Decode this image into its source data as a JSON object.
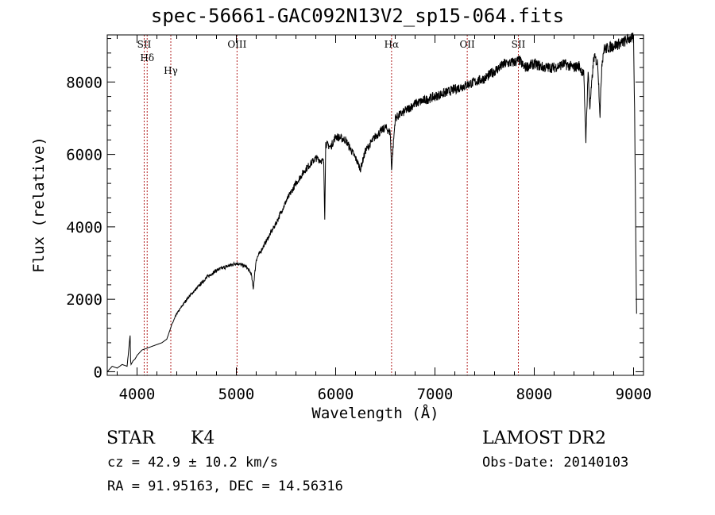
{
  "chart_data": {
    "type": "line",
    "title": "spec-56661-GAC092N13V2_sp15-064.fits",
    "xlabel": "Wavelength (Å)",
    "ylabel": "Flux (relative)",
    "xlim": [
      3700,
      9100
    ],
    "ylim": [
      -100,
      9300
    ],
    "xticks": [
      4000,
      5000,
      6000,
      7000,
      8000,
      9000
    ],
    "yticks": [
      0,
      2000,
      4000,
      6000,
      8000
    ],
    "grid": false,
    "series": [
      {
        "x": [
          3700,
          3750,
          3800,
          3850,
          3900,
          3930,
          3935,
          3940,
          3960,
          3980,
          4000,
          4050,
          4100,
          4150,
          4200,
          4250,
          4300,
          4350,
          4400,
          4500,
          4600,
          4700,
          4800,
          4900,
          5000,
          5050,
          5100,
          5150,
          5170,
          5200,
          5300,
          5400,
          5500,
          5600,
          5700,
          5800,
          5880,
          5890,
          5900,
          5950,
          6000,
          6100,
          6200,
          6250,
          6300,
          6400,
          6500,
          6550,
          6563,
          6600,
          6700,
          6800,
          6900,
          7000,
          7100,
          7200,
          7300,
          7400,
          7500,
          7600,
          7700,
          7800,
          7850,
          7900,
          8000,
          8100,
          8200,
          8300,
          8400,
          8450,
          8498,
          8520,
          8542,
          8560,
          8600,
          8640,
          8662,
          8680,
          8700,
          8800,
          8900,
          8950,
          9000,
          9010,
          9030
        ],
        "values": [
          0,
          150,
          100,
          200,
          150,
          1000,
          300,
          200,
          300,
          350,
          450,
          600,
          650,
          700,
          750,
          800,
          900,
          1300,
          1600,
          2000,
          2300,
          2600,
          2800,
          2900,
          3000,
          2950,
          2900,
          2700,
          2300,
          3100,
          3600,
          4100,
          4700,
          5200,
          5600,
          5900,
          5800,
          4200,
          6300,
          6200,
          6500,
          6400,
          5900,
          5600,
          6100,
          6500,
          6750,
          6600,
          5600,
          7000,
          7200,
          7400,
          7500,
          7600,
          7700,
          7800,
          7900,
          8000,
          8100,
          8300,
          8500,
          8550,
          8600,
          8400,
          8500,
          8400,
          8400,
          8500,
          8400,
          8450,
          8200,
          6400,
          8300,
          7300,
          8700,
          8500,
          7100,
          8500,
          8900,
          9000,
          9100,
          9200,
          9200,
          7200,
          1600
        ]
      }
    ],
    "lines": [
      {
        "name": "Hδ",
        "x": 4102
      },
      {
        "name": "SII",
        "x": 4072
      },
      {
        "name": "Hγ",
        "x": 4340
      },
      {
        "name": "OIII",
        "x": 5007
      },
      {
        "name": "Hα",
        "x": 6563
      },
      {
        "name": "OII",
        "x": 7325
      },
      {
        "name": "SII",
        "x": 7840
      }
    ]
  },
  "info": {
    "class": "STAR",
    "subclass": "K4",
    "survey": "LAMOST DR2",
    "cz": "cz = 42.9 ± 10.2 km/s",
    "obs_date": "Obs-Date: 20140103",
    "coords": "RA =  91.95163, DEC =  14.56316"
  }
}
